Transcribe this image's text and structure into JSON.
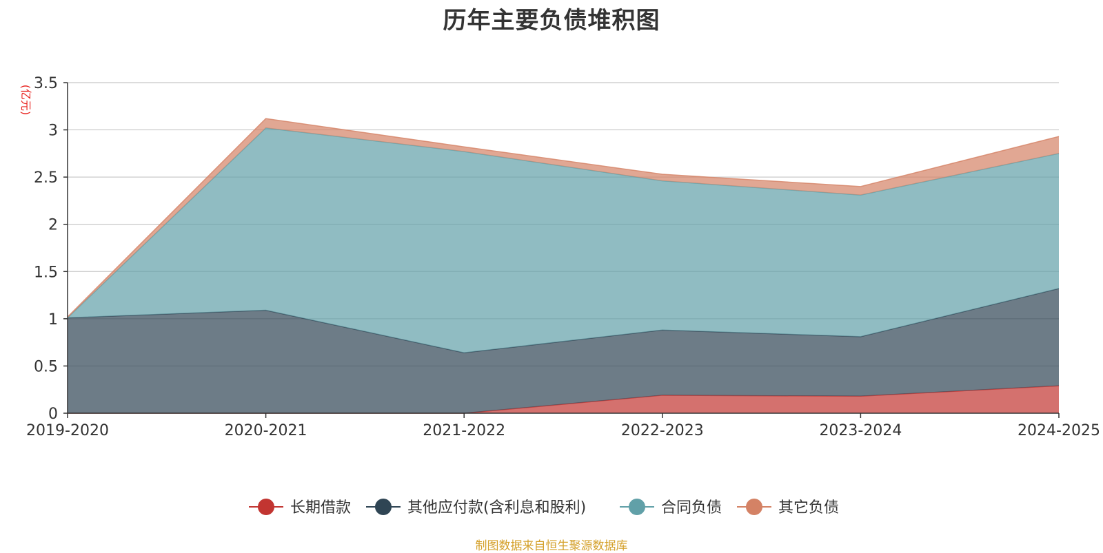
{
  "title": "历年主要负债堆积图",
  "source_note": "制图数据来自恒生聚源数据库",
  "chart_data": {
    "type": "area",
    "stacked": true,
    "title": "历年主要负债堆积图",
    "unit": "(亿元)",
    "categories": [
      "2019-2020",
      "2020-2021",
      "2021-2022",
      "2022-2023",
      "2023-2024",
      "2024-2025"
    ],
    "ylim": [
      0,
      3.5
    ],
    "yticks": [
      0,
      0.5,
      1,
      1.5,
      2,
      2.5,
      3,
      3.5
    ],
    "ytick_labels": [
      "0",
      "0.5",
      "1",
      "1.5",
      "2",
      "2.5",
      "3",
      "3.5"
    ],
    "grid": true,
    "legend_position": "bottom",
    "series": [
      {
        "name": "长期借款",
        "color": "#c23531",
        "values": [
          0,
          0,
          0,
          0.19,
          0.18,
          0.29
        ]
      },
      {
        "name": "其他应付款(含利息和股利)",
        "color": "#2f4554",
        "values": [
          1.01,
          1.09,
          0.64,
          0.69,
          0.63,
          1.03
        ]
      },
      {
        "name": "合同负债",
        "color": "#61a0a8",
        "values": [
          0,
          1.93,
          2.13,
          1.58,
          1.5,
          1.43
        ]
      },
      {
        "name": "其它负债",
        "color": "#d48265",
        "values": [
          0.01,
          0.1,
          0.05,
          0.07,
          0.09,
          0.18
        ]
      }
    ]
  }
}
